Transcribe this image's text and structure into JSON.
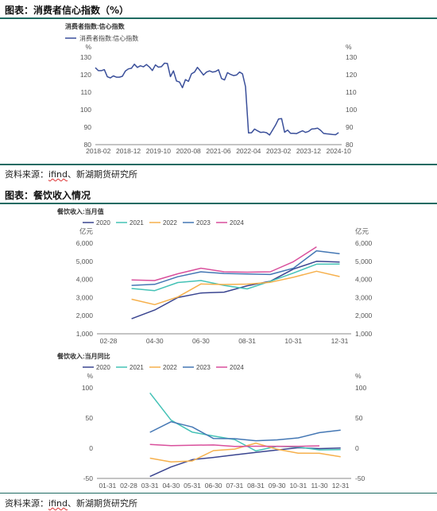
{
  "section1": {
    "title": "图表：消费者信心指数（%）",
    "source_prefix": "资料来源：",
    "source_link": "ifind",
    "source_suffix": "、新湖期货研究所"
  },
  "section2": {
    "title": "图表：餐饮收入情况",
    "source_prefix": "资料来源：",
    "source_link": "ifind",
    "source_suffix": "、新湖期货研究所"
  },
  "colors": {
    "rule": "#1f6b62",
    "series_2020": "#3a4590",
    "series_2021": "#44c2b6",
    "series_2022": "#f6b04c",
    "series_2023": "#4477b4",
    "series_2024": "#d94f9c",
    "consumer": "#3a4f9a"
  },
  "chart_data": [
    {
      "type": "line",
      "title": "消费者指数:信心指数",
      "legend": [
        "消费者指数:信心指数"
      ],
      "legend_position": "top-left",
      "ylabel_left": "%",
      "ylabel_right": "%",
      "ylim": [
        80,
        130
      ],
      "yticks": [
        "80",
        "90",
        "100",
        "110",
        "120",
        "130"
      ],
      "xticks": [
        "2018-02",
        "2018-12",
        "2019-10",
        "2020-08",
        "2021-06",
        "2022-04",
        "2023-02",
        "2023-12",
        "2024-10"
      ],
      "grid": false,
      "series": [
        {
          "name": "消费者指数:信心指数",
          "x": [
            "2018-01",
            "2018-02",
            "2018-03",
            "2018-04",
            "2018-05",
            "2018-06",
            "2018-07",
            "2018-08",
            "2018-09",
            "2018-10",
            "2018-11",
            "2018-12",
            "2019-01",
            "2019-02",
            "2019-03",
            "2019-04",
            "2019-05",
            "2019-06",
            "2019-07",
            "2019-08",
            "2019-09",
            "2019-10",
            "2019-11",
            "2019-12",
            "2020-01",
            "2020-02",
            "2020-03",
            "2020-04",
            "2020-05",
            "2020-06",
            "2020-07",
            "2020-08",
            "2020-09",
            "2020-10",
            "2020-11",
            "2020-12",
            "2021-01",
            "2021-02",
            "2021-03",
            "2021-04",
            "2021-05",
            "2021-06",
            "2021-07",
            "2021-08",
            "2021-09",
            "2021-10",
            "2021-11",
            "2021-12",
            "2022-01",
            "2022-02",
            "2022-03",
            "2022-04",
            "2022-05",
            "2022-06",
            "2022-07",
            "2022-08",
            "2022-09",
            "2022-10",
            "2022-11",
            "2022-12",
            "2023-01",
            "2023-02",
            "2023-03",
            "2023-04",
            "2023-05",
            "2023-06",
            "2023-07",
            "2023-08",
            "2023-09",
            "2023-10",
            "2023-11",
            "2023-12",
            "2024-01",
            "2024-02",
            "2024-03",
            "2024-04",
            "2024-05",
            "2024-06",
            "2024-07",
            "2024-08",
            "2024-09",
            "2024-10"
          ],
          "values": [
            124.0,
            122.3,
            122.3,
            122.9,
            118.8,
            118.2,
            119.3,
            118.6,
            118.6,
            119.1,
            122.1,
            123.3,
            123.7,
            126.0,
            124.2,
            125.1,
            124.5,
            125.8,
            124.4,
            122.4,
            125.6,
            124.3,
            124.6,
            126.6,
            126.4,
            118.9,
            122.2,
            116.4,
            115.8,
            112.6,
            117.2,
            116.2,
            120.5,
            121.5,
            124.2,
            122.1,
            119.8,
            121.5,
            122.2,
            121.5,
            121.8,
            122.8,
            117.8,
            117.0,
            121.2,
            120.2,
            119.5,
            119.8,
            121.5,
            120.5,
            113.2,
            86.7,
            86.8,
            88.9,
            87.9,
            87.0,
            87.2,
            86.8,
            85.5,
            88.3,
            91.2,
            94.7,
            94.9,
            87.1,
            88.3,
            86.5,
            86.5,
            86.3,
            87.2,
            87.9,
            87.0,
            87.6,
            88.9,
            89.1,
            89.4,
            88.2,
            86.4,
            86.2,
            86.0,
            85.8,
            85.7,
            86.9
          ]
        }
      ]
    },
    {
      "type": "line",
      "title": "餐饮收入:当月值",
      "legend": [
        "2020",
        "2021",
        "2022",
        "2023",
        "2024"
      ],
      "legend_position": "top-left",
      "ylabel_left": "亿元",
      "ylabel_right": "亿元",
      "ylim": [
        1000,
        6000
      ],
      "yticks": [
        "1,000",
        "2,000",
        "3,000",
        "4,000",
        "5,000",
        "6,000"
      ],
      "categories": [
        "02-28",
        "03-31",
        "04-30",
        "05-31",
        "06-30",
        "07-31",
        "08-31",
        "09-30",
        "10-31",
        "11-30",
        "12-31"
      ],
      "xticks": [
        "02-28",
        "04-30",
        "06-30",
        "08-31",
        "10-31",
        "12-31"
      ],
      "series": [
        {
          "name": "2020",
          "values": [
            null,
            1830,
            2310,
            3000,
            3250,
            3300,
            3650,
            3900,
            4570,
            5000,
            4960
          ]
        },
        {
          "name": "2021",
          "values": [
            null,
            3500,
            3380,
            3830,
            3940,
            3670,
            3480,
            3900,
            4350,
            4840,
            4850
          ]
        },
        {
          "name": "2022",
          "values": [
            null,
            2910,
            2610,
            3030,
            3750,
            3720,
            3740,
            3840,
            4120,
            4450,
            4160
          ]
        },
        {
          "name": "2023",
          "values": [
            null,
            3670,
            3730,
            4150,
            4420,
            4330,
            4300,
            4270,
            4620,
            5580,
            5420
          ]
        },
        {
          "name": "2024",
          "values": [
            null,
            3970,
            3940,
            4310,
            4620,
            4420,
            4400,
            4420,
            4980,
            5800,
            null
          ]
        }
      ]
    },
    {
      "type": "line",
      "title": "餐饮收入:当月同比",
      "legend": [
        "2020",
        "2021",
        "2022",
        "2023",
        "2024"
      ],
      "legend_position": "top-left",
      "ylabel_left": "%",
      "ylabel_right": "%",
      "ylim": [
        -50,
        100
      ],
      "yticks": [
        "-50",
        "0",
        "50",
        "100"
      ],
      "categories": [
        "01-31",
        "02-28",
        "03-31",
        "04-30",
        "05-31",
        "06-30",
        "07-31",
        "08-31",
        "09-30",
        "10-31",
        "11-30",
        "12-31"
      ],
      "series": [
        {
          "name": "2020",
          "values": [
            null,
            null,
            -46.8,
            -31.1,
            -18.9,
            -15.2,
            -11.0,
            -7.0,
            -2.9,
            0.8,
            -0.6,
            0.4
          ]
        },
        {
          "name": "2021",
          "values": [
            null,
            null,
            91.6,
            46.4,
            26.6,
            20.2,
            14.3,
            -4.5,
            3.1,
            2.0,
            -2.7,
            -2.2
          ]
        },
        {
          "name": "2022",
          "values": [
            null,
            null,
            -16.4,
            -22.7,
            -21.1,
            -4.0,
            -1.5,
            8.4,
            -1.7,
            -8.1,
            -8.4,
            -14.1
          ]
        },
        {
          "name": "2023",
          "values": [
            null,
            null,
            26.3,
            43.8,
            35.1,
            16.1,
            15.8,
            12.4,
            13.8,
            17.1,
            25.8,
            30.0
          ]
        },
        {
          "name": "2024",
          "values": [
            null,
            null,
            6.2,
            4.4,
            5.0,
            5.4,
            3.0,
            3.3,
            3.1,
            3.2,
            4.0,
            null
          ]
        }
      ]
    }
  ]
}
